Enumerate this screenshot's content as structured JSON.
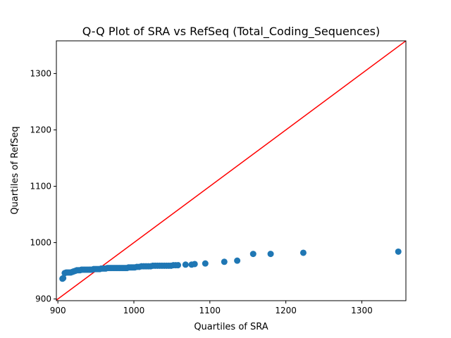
{
  "chart_data": {
    "type": "scatter",
    "title": "Q-Q Plot of SRA vs RefSeq (Total_Coding_Sequences)",
    "xlabel": "Quartiles of SRA",
    "ylabel": "Quartiles of RefSeq",
    "xlim": [
      898,
      1358
    ],
    "ylim": [
      897,
      1358
    ],
    "xticks": [
      900,
      1000,
      1100,
      1200,
      1300
    ],
    "yticks": [
      900,
      1000,
      1100,
      1200,
      1300
    ],
    "grid": false,
    "colors": {
      "points": "#1f77b4",
      "reference_line": "#ff0000"
    },
    "reference_line": {
      "from": [
        890,
        890
      ],
      "to": [
        1370,
        1370
      ]
    },
    "series": [
      {
        "x": [
          906,
          907,
          909,
          911,
          913,
          915,
          917,
          919,
          921,
          923,
          925,
          927,
          929,
          931,
          933,
          935,
          937,
          939,
          941,
          943,
          945,
          947,
          949,
          951,
          953,
          955,
          957,
          959,
          961,
          963,
          965,
          967,
          969,
          971,
          973,
          975,
          977,
          979,
          981,
          983,
          985,
          987,
          989,
          991,
          993,
          995,
          997,
          999,
          1001,
          1004,
          1007,
          1010,
          1013,
          1016,
          1019,
          1022,
          1025,
          1028,
          1031,
          1034,
          1037,
          1040,
          1043,
          1046,
          1049,
          1052,
          1055,
          1058,
          1068,
          1076,
          1080,
          1094,
          1119,
          1136,
          1157,
          1180,
          1223,
          1348
        ],
        "y": [
          936,
          937,
          946,
          947,
          947,
          947,
          947,
          948,
          949,
          950,
          951,
          951,
          951,
          952,
          952,
          952,
          952,
          952,
          952,
          952,
          952,
          953,
          953,
          953,
          953,
          953,
          954,
          954,
          954,
          954,
          955,
          955,
          955,
          955,
          955,
          955,
          955,
          955,
          955,
          955,
          955,
          955,
          955,
          955,
          956,
          956,
          956,
          956,
          956,
          957,
          957,
          958,
          958,
          958,
          958,
          958,
          959,
          959,
          959,
          959,
          959,
          959,
          959,
          959,
          959,
          960,
          960,
          960,
          961,
          961,
          962,
          963,
          966,
          968,
          980,
          980,
          982,
          984
        ]
      }
    ]
  }
}
